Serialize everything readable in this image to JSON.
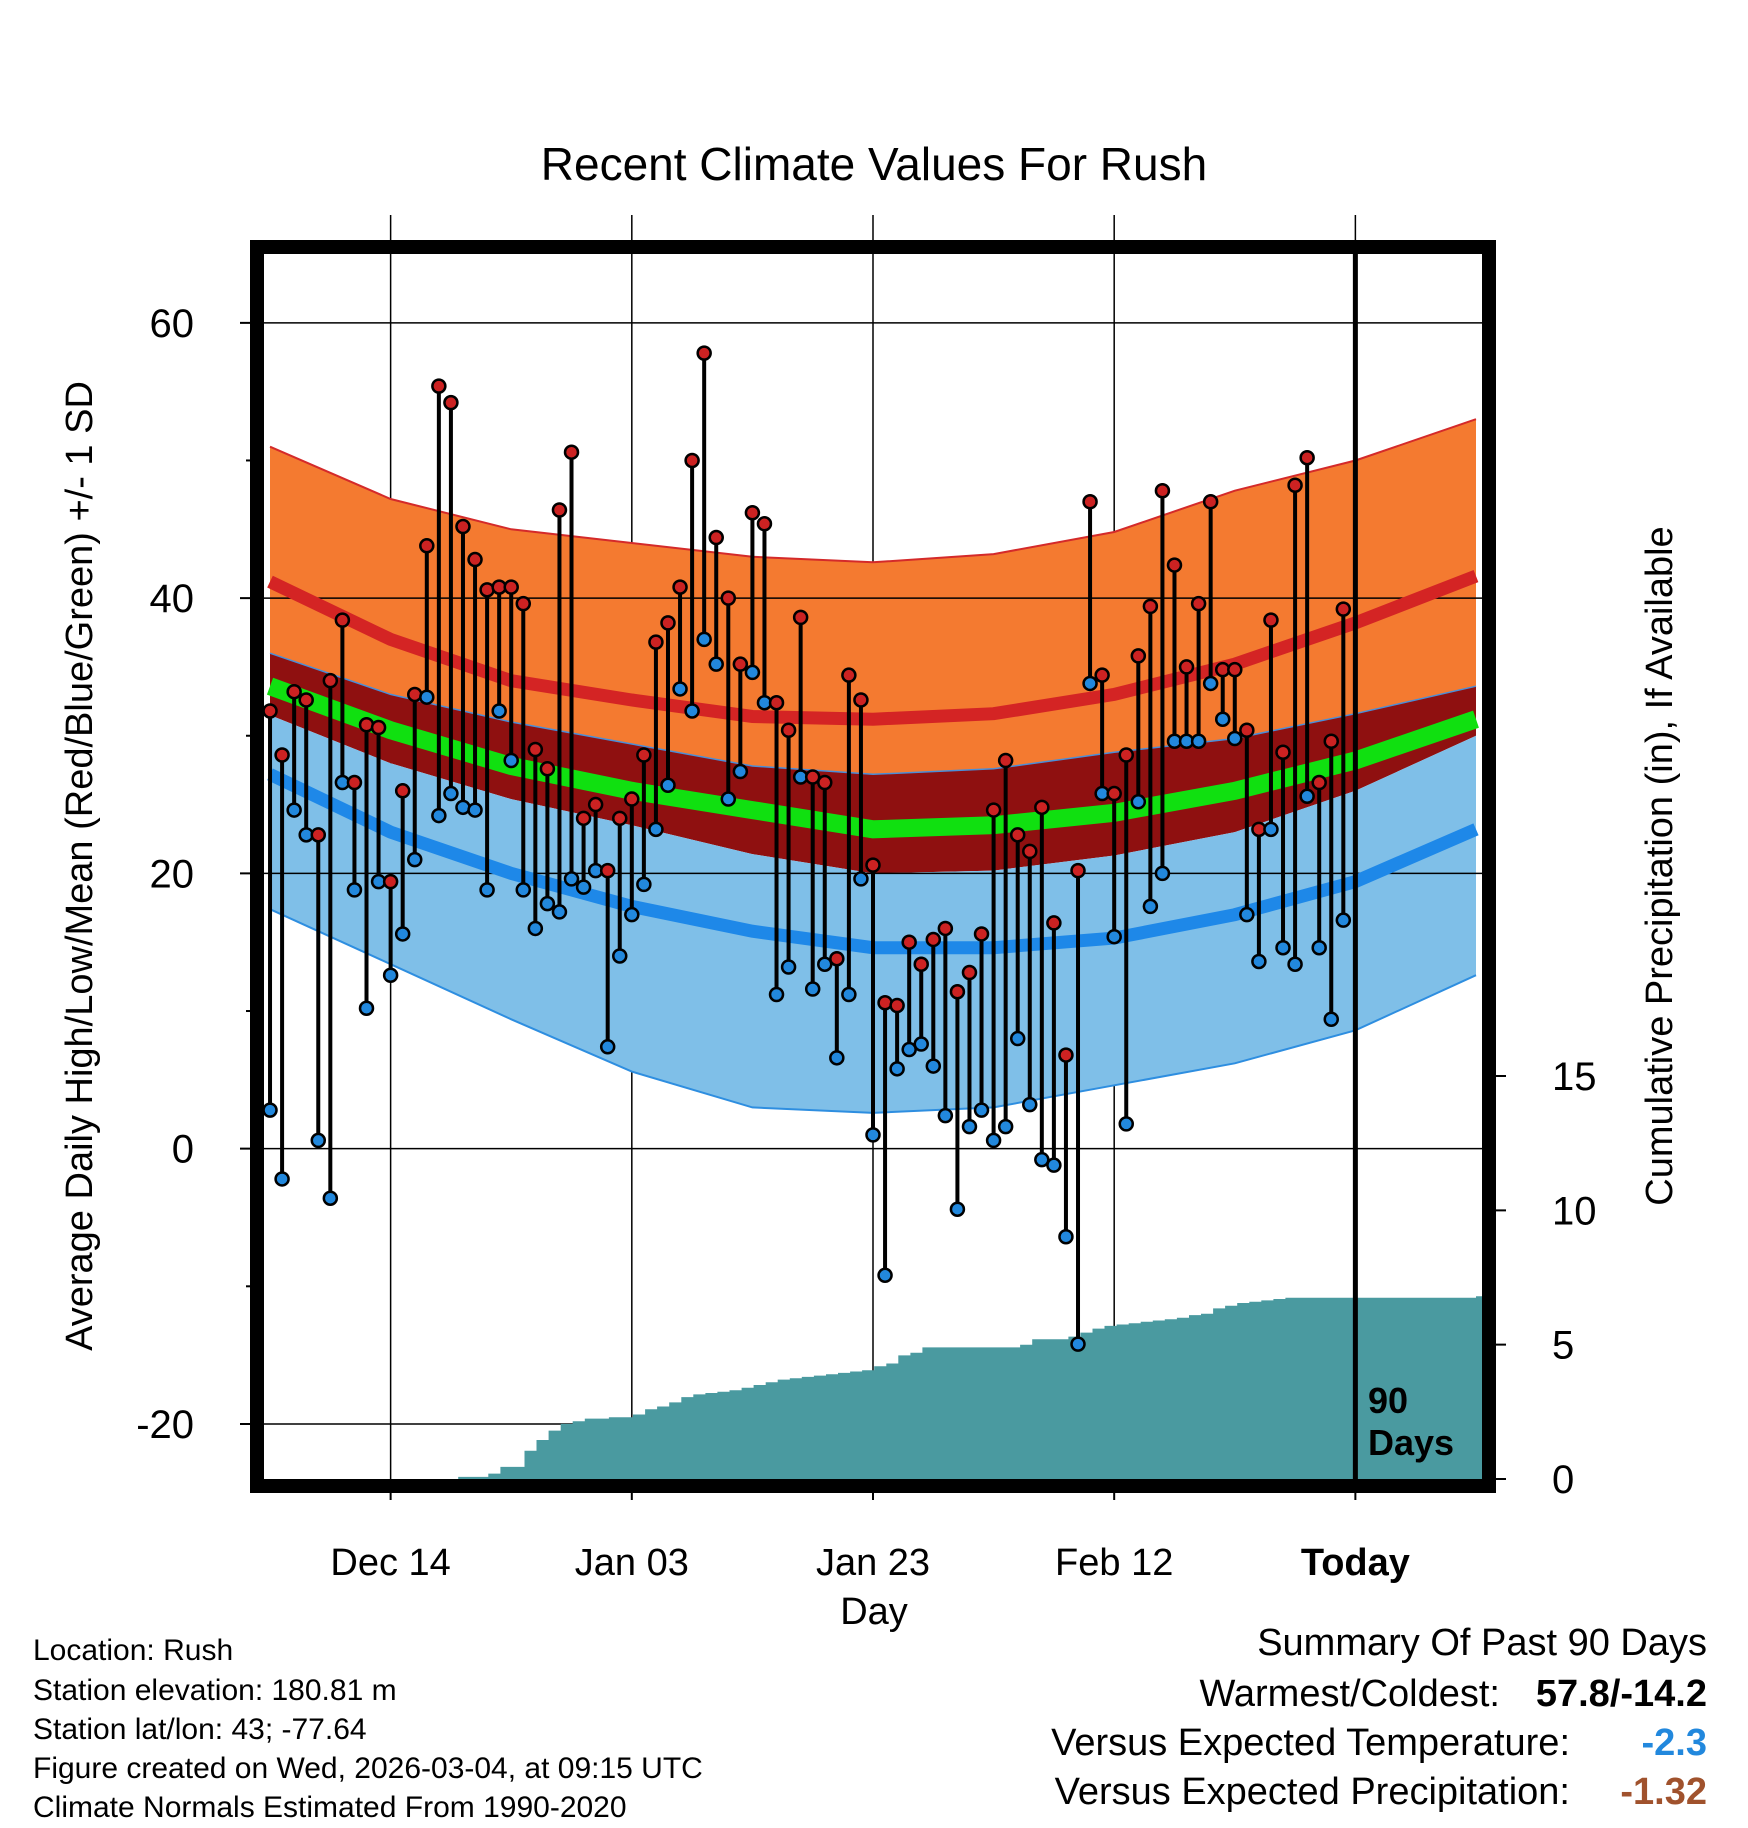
{
  "chart_data": {
    "type": "line",
    "title": "Recent Climate Values For Rush",
    "xlabel": "Day",
    "ylabel": "Average Daily High/Low/Mean (Red/Blue/Green) +/- 1 SD",
    "y2label": "Cumulative Precipitation (in), If Available",
    "xlim": [
      -10.5,
      90.5
    ],
    "ylim": [
      -24,
      65
    ],
    "y2lim": [
      0,
      45.6
    ],
    "x_ticks": [
      {
        "x": 0,
        "label": "Dec 14"
      },
      {
        "x": 20,
        "label": "Jan 03"
      },
      {
        "x": 40,
        "label": "Jan 23"
      },
      {
        "x": 60,
        "label": "Feb 12"
      },
      {
        "x": 80,
        "label": "Today"
      }
    ],
    "y_ticks": [
      -20,
      0,
      20,
      40,
      60
    ],
    "y2_ticks": [
      0,
      5,
      10,
      15
    ],
    "today_x": 80,
    "today_label_line1": "90",
    "today_label_line2": "Days",
    "normals": {
      "x": [
        -10,
        0,
        10,
        20,
        30,
        40,
        50,
        60,
        70,
        80,
        90
      ],
      "high_plus_sd": [
        51,
        47.2,
        45,
        44,
        43,
        42.6,
        43.2,
        44.8,
        47.8,
        50,
        53
      ],
      "high": [
        41.2,
        37,
        34,
        32.6,
        31.4,
        31.2,
        31.6,
        33,
        35.2,
        38.2,
        41.6
      ],
      "high_minus_sd": [
        36,
        33,
        31,
        29.4,
        27.8,
        27.2,
        27.6,
        28.8,
        29.8,
        31.6,
        33.6
      ],
      "mean": [
        33.6,
        30.4,
        27.8,
        26,
        24.6,
        23.2,
        23.5,
        24.4,
        26,
        28.2,
        31.2
      ],
      "low_plus_sd": [
        31.5,
        28,
        25.4,
        23.5,
        21.4,
        20,
        20.2,
        21.3,
        23,
        26,
        30
      ],
      "low": [
        27.2,
        23,
        20,
        17.6,
        15.8,
        14.6,
        14.6,
        15.3,
        17,
        19.4,
        23.2
      ],
      "low_minus_sd": [
        17.4,
        13.4,
        9.4,
        5.6,
        3,
        2.6,
        3,
        4.6,
        6.2,
        8.6,
        12.6
      ]
    },
    "series": [
      {
        "name": "High",
        "color": "#cc2222",
        "values": [
          31.8,
          28.6,
          33.2,
          32.6,
          22.8,
          34,
          38.4,
          26.6,
          30.8,
          30.6,
          19.4,
          26,
          33,
          43.8,
          55.4,
          54.2,
          45.2,
          42.8,
          40.6,
          40.8,
          40.8,
          39.6,
          29,
          27.6,
          46.4,
          50.6,
          24,
          25,
          20.2,
          24,
          25.4,
          28.6,
          36.8,
          38.2,
          40.8,
          50,
          57.8,
          44.4,
          40,
          35.2,
          46.2,
          45.4,
          32.4,
          30.4,
          38.6,
          27,
          26.6,
          13.8,
          34.4,
          32.6,
          20.6,
          10.6,
          10.4,
          15,
          13.4,
          15.2,
          16,
          11.4,
          12.8,
          15.6,
          24.6,
          28.2,
          22.8,
          21.6,
          24.8,
          16.4,
          6.8,
          20.2,
          47,
          34.4,
          25.8,
          28.6,
          35.8,
          39.4,
          47.8,
          42.4,
          35,
          39.6,
          47,
          34.8,
          34.8,
          30.4,
          23.2,
          38.4,
          28.8,
          48.2,
          50.2,
          26.6,
          29.6,
          39.2
        ]
      },
      {
        "name": "Low",
        "color": "#2288dd",
        "values": [
          2.8,
          -2.2,
          24.6,
          22.8,
          0.6,
          -3.6,
          26.6,
          18.8,
          10.2,
          19.4,
          12.6,
          15.6,
          21,
          32.8,
          24.2,
          25.8,
          24.8,
          24.6,
          18.8,
          31.8,
          28.2,
          18.8,
          16,
          17.8,
          17.2,
          19.6,
          19,
          20.2,
          7.4,
          14,
          17,
          19.2,
          23.2,
          26.4,
          33.4,
          31.8,
          37,
          35.2,
          25.4,
          27.4,
          34.6,
          32.4,
          11.2,
          13.2,
          27,
          11.6,
          13.4,
          6.6,
          11.2,
          19.6,
          1,
          -9.2,
          5.8,
          7.2,
          7.6,
          6,
          2.4,
          -4.4,
          1.6,
          2.8,
          0.6,
          1.6,
          8,
          3.2,
          -0.8,
          -1.2,
          -6.4,
          -14.2,
          33.8,
          25.8,
          15.4,
          1.8,
          25.2,
          17.6,
          20,
          29.6,
          29.6,
          29.6,
          33.8,
          31.2,
          29.8,
          17,
          13.6,
          23.2,
          14.6,
          13.4,
          25.6,
          14.6,
          9.4,
          16.6
        ]
      }
    ],
    "precip_cumulative": {
      "x": [
        -10,
        4.6,
        5.6,
        7.3,
        8.1,
        9.1,
        10.1,
        11.1,
        12.1,
        13.1,
        14.1,
        15.1,
        16.1,
        17.1,
        18.1,
        19.1,
        20.1,
        21.1,
        22.1,
        23.1,
        24.1,
        25.1,
        26.1,
        27.1,
        28.1,
        29.1,
        30.1,
        31.1,
        32.1,
        33.1,
        34.1,
        35.1,
        36.1,
        37.1,
        38.1,
        39.1,
        40.1,
        41.1,
        42.1,
        43.1,
        44.1,
        52.2,
        53.2,
        56.2,
        57.2,
        58.2,
        59.2,
        60.2,
        61.2,
        62.2,
        63.2,
        64.2,
        65.2,
        66.2,
        67.2,
        68.2,
        69.2,
        70.2,
        71.2,
        72.2,
        73.2,
        74.2,
        90
      ],
      "values": [
        0,
        0,
        0.08,
        0.08,
        0.2,
        0.45,
        0.45,
        1.05,
        1.45,
        1.8,
        2.05,
        2.15,
        2.25,
        2.25,
        2.3,
        2.3,
        2.4,
        2.6,
        2.7,
        2.85,
        3.05,
        3.15,
        3.2,
        3.25,
        3.3,
        3.4,
        3.5,
        3.6,
        3.7,
        3.75,
        3.8,
        3.85,
        3.9,
        3.95,
        4.0,
        4.05,
        4.2,
        4.3,
        4.6,
        4.7,
        4.9,
        5.0,
        5.2,
        5.3,
        5.45,
        5.6,
        5.7,
        5.75,
        5.8,
        5.85,
        5.9,
        5.95,
        6.0,
        6.1,
        6.15,
        6.35,
        6.45,
        6.55,
        6.6,
        6.65,
        6.7,
        6.75,
        6.8
      ]
    }
  },
  "info": {
    "location": "Location: Rush",
    "elevation": "Station elevation: 180.81 m",
    "latlon": "Station lat/lon: 43; -77.64",
    "created": "Figure created on Wed, 2026-03-04, at 09:15 UTC",
    "normals": "Climate Normals Estimated From 1990-2020"
  },
  "summary": {
    "title": "Summary Of Past 90 Days",
    "warm_cold_label": "Warmest/Coldest:",
    "warm_cold_value": "57.8/-14.2",
    "temp_label": "Versus Expected Temperature:",
    "temp_value": "-2.3",
    "temp_color": "#2288dd",
    "precip_label": "Versus Expected Precipitation:",
    "precip_value": "-1.32",
    "precip_color": "#a0522d"
  }
}
